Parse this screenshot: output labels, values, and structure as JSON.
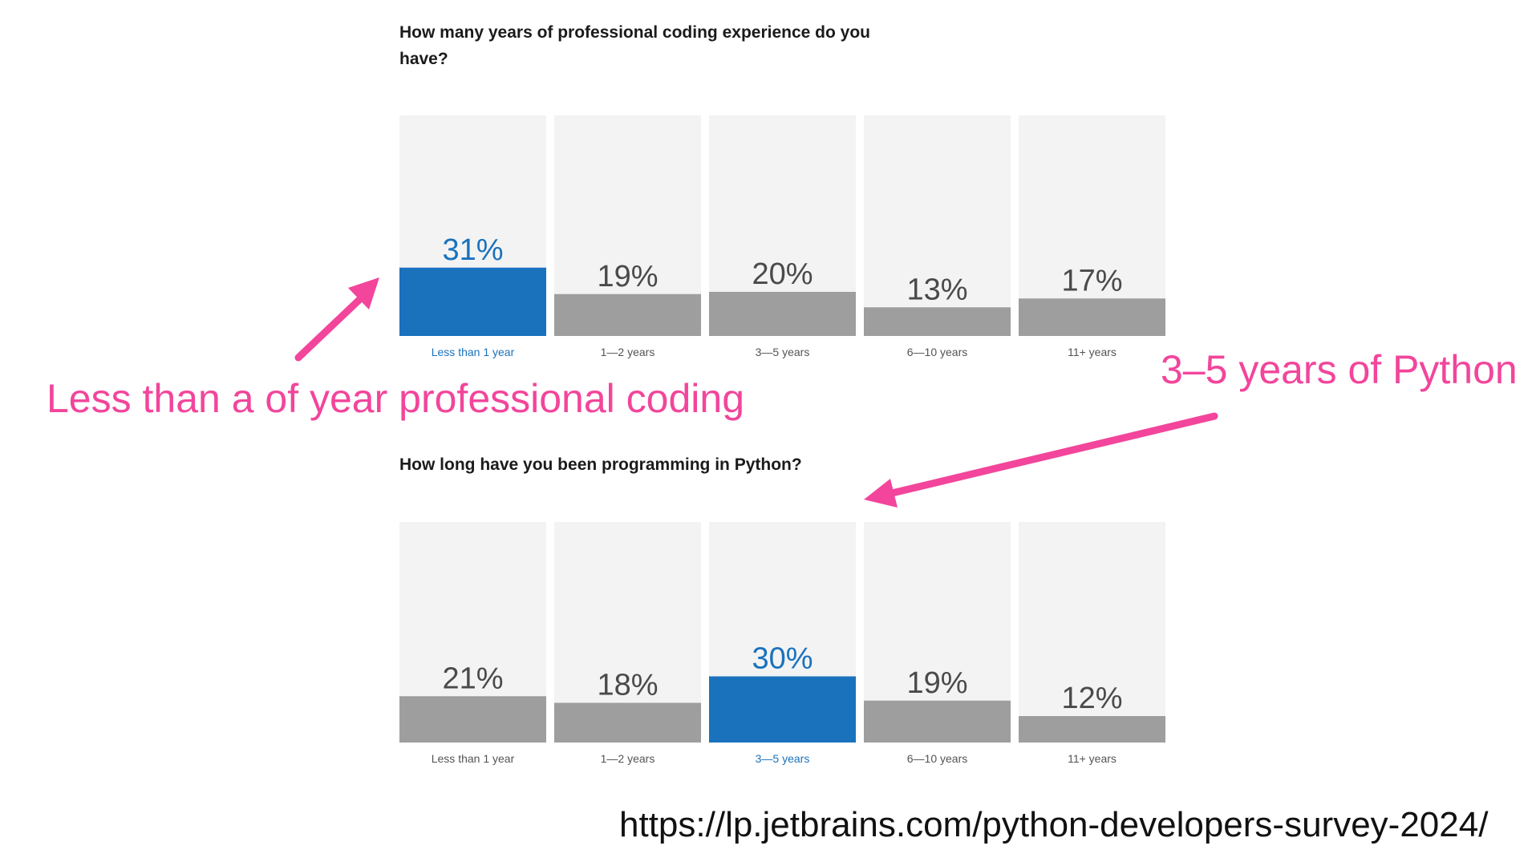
{
  "colors": {
    "highlight": "#1a72bd",
    "bar": "#9e9e9e",
    "track": "#f3f3f3",
    "label": "#545454",
    "value_text": "#4a4a4a",
    "annotation": "#f2459b"
  },
  "chart_data": [
    {
      "type": "bar",
      "title": "How many years of professional coding experience do you have?",
      "categories": [
        "Less than 1 year",
        "1—2 years",
        "3—5 years",
        "6—10 years",
        "11+ years"
      ],
      "values": [
        31,
        19,
        20,
        13,
        17
      ],
      "value_labels": [
        "31%",
        "19%",
        "20%",
        "13%",
        "17%"
      ],
      "highlight_index": 0,
      "xlabel": "",
      "ylabel": "",
      "ylim": [
        0,
        100
      ],
      "grid": false
    },
    {
      "type": "bar",
      "title": "How long have you been programming in Python?",
      "categories": [
        "Less than 1 year",
        "1—2 years",
        "3—5 years",
        "6—10 years",
        "11+ years"
      ],
      "values": [
        21,
        18,
        30,
        19,
        12
      ],
      "value_labels": [
        "21%",
        "18%",
        "30%",
        "19%",
        "12%"
      ],
      "highlight_index": 2,
      "xlabel": "",
      "ylabel": "",
      "ylim": [
        0,
        100
      ],
      "grid": false
    }
  ],
  "annotations": {
    "left": "Less than a of year professional coding",
    "right": "3–5 years of Python"
  },
  "source_url": "https://lp.jetbrains.com/python-developers-survey-2024/"
}
